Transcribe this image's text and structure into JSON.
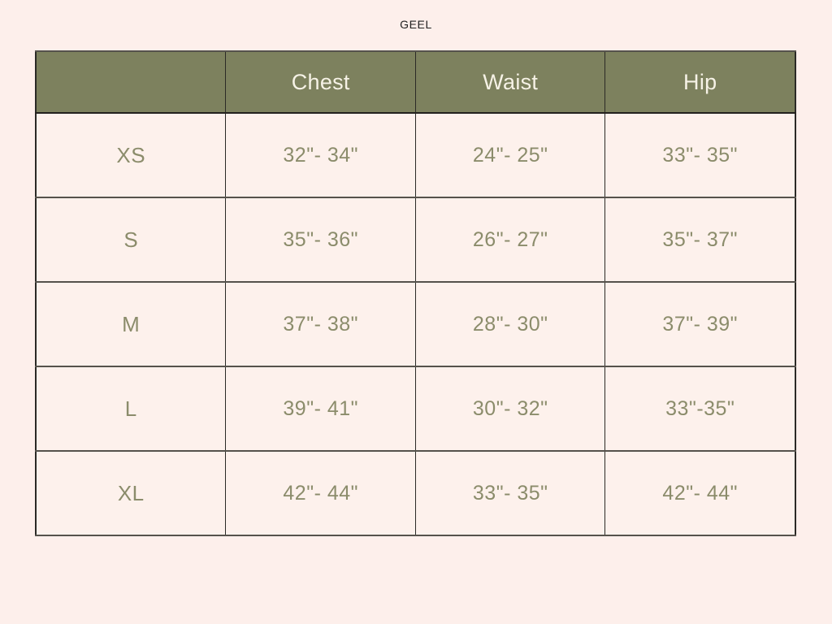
{
  "page": {
    "title": "GEEL",
    "background_color": "#fdefeb"
  },
  "colors": {
    "header_background": "#7d815e",
    "header_text": "#f6f2e6",
    "cell_text": "#8b8c6b",
    "cell_background": "#fdf1ec",
    "border_vertical": "#2b2a26",
    "border_horizontal": "#55524c"
  },
  "chart_data": {
    "type": "table",
    "title": "GEEL",
    "columns": [
      "",
      "Chest",
      "Waist",
      "Hip"
    ],
    "rows": [
      {
        "size": "XS",
        "chest": "32\"- 34\"",
        "waist": "24\"- 25\"",
        "hip": "33\"- 35\""
      },
      {
        "size": "S",
        "chest": "35\"- 36\"",
        "waist": "26\"- 27\"",
        "hip": "35\"- 37\""
      },
      {
        "size": "M",
        "chest": "37\"- 38\"",
        "waist": "28\"- 30\"",
        "hip": "37\"- 39\""
      },
      {
        "size": "L",
        "chest": "39\"- 41\"",
        "waist": "30\"- 32\"",
        "hip": "33\"-35\""
      },
      {
        "size": "XL",
        "chest": "42\"- 44\"",
        "waist": "33\"- 35\"",
        "hip": "42\"- 44\""
      }
    ]
  }
}
